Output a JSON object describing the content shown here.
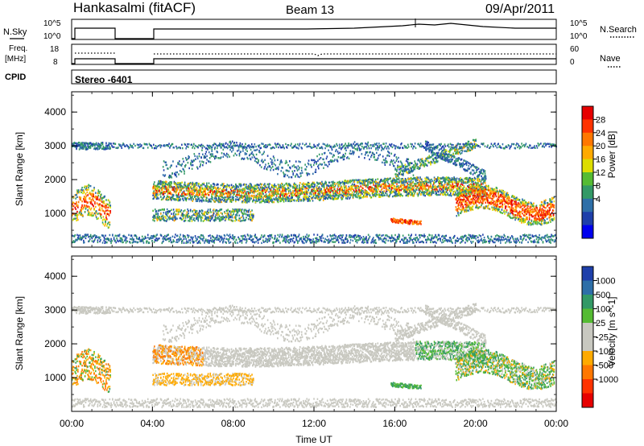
{
  "header": {
    "station": "Hankasalmi (fitACF)",
    "beam": "Beam 13",
    "date": "09/Apr/2011"
  },
  "nsky_panel": {
    "left_label": "N.Sky",
    "right_label": "N.Search",
    "tick_top": "10^5",
    "tick_bottom": "10^0"
  },
  "freq_panel": {
    "left_label_line1": "Freq.",
    "left_label_line2": "[MHz]",
    "right_label": "Nave",
    "left_tick_top": "18",
    "left_tick_bottom": "8",
    "right_tick_top": "60",
    "right_tick_bottom": "0"
  },
  "cpid_panel": {
    "label": "CPID",
    "program": "Stereo -6401"
  },
  "time_axis": {
    "label": "Time UT",
    "ticks": [
      "00:00",
      "04:00",
      "08:00",
      "12:00",
      "16:00",
      "20:00",
      "00:00"
    ]
  },
  "chart_data": [
    {
      "type": "heatmap",
      "name": "Power",
      "ylabel": "Slant Range [km]",
      "yticks": [
        1000,
        2000,
        3000,
        4000
      ],
      "colorbar_label": "Power [dB]",
      "colorbar_ticks": [
        28,
        24,
        20,
        16,
        12,
        8,
        4
      ],
      "colorbar_colors": [
        "#e60000",
        "#ff3300",
        "#ff7700",
        "#ffaa00",
        "#dddd00",
        "#55bb33",
        "#339966",
        "#2e6fa8",
        "#1e3faa",
        "#0000ee"
      ]
    },
    {
      "type": "heatmap",
      "name": "Velocity",
      "ylabel": "Slant Range [km]",
      "yticks": [
        1000,
        2000,
        3000,
        4000
      ],
      "colorbar_label": "Velocity [m s^-1]",
      "colorbar_ticks": [
        1000,
        500,
        100,
        25,
        -25,
        -100,
        -500,
        -1000
      ],
      "colorbar_colors": [
        "#1e3faa",
        "#2e6fa8",
        "#339966",
        "#55bb33",
        "#c8c8c0",
        "#c8c8c0",
        "#ffaa00",
        "#ff7700",
        "#ff3300",
        "#e60000"
      ]
    }
  ]
}
